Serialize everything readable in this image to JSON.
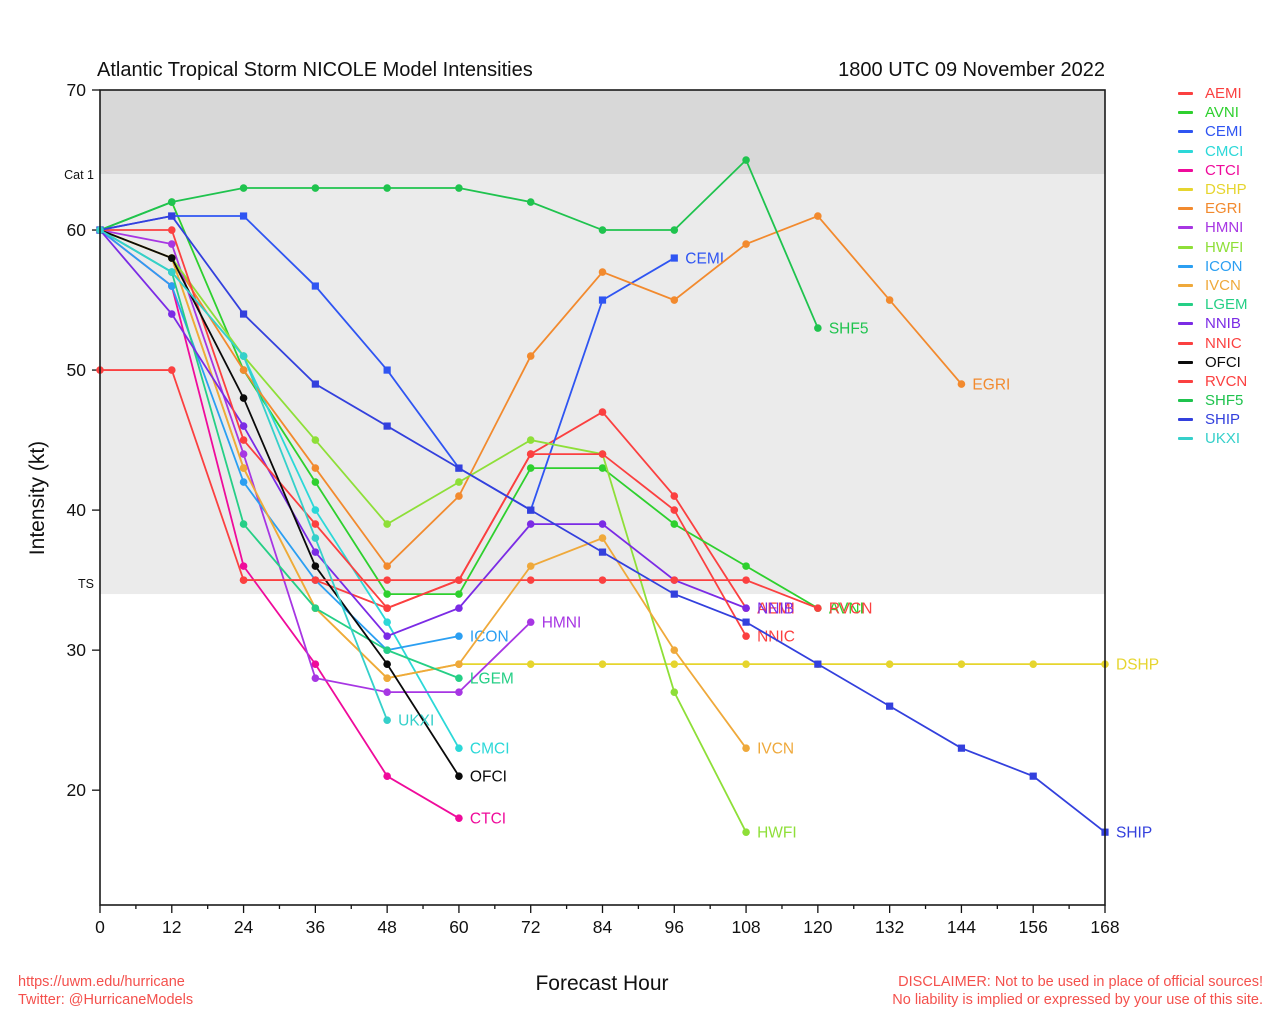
{
  "header": {
    "title": "Atlantic Tropical Storm NICOLE Model Intensities",
    "datetime": "1800 UTC 09 November 2022"
  },
  "axes": {
    "x_label": "Forecast Hour",
    "y_label": "Intensity (kt)"
  },
  "footer": {
    "url": "https://uwm.edu/hurricane",
    "twitter": "Twitter: @HurricaneModels",
    "disclaimer_line_1": "DISCLAIMER: Not to be used in place of official sources!",
    "disclaimer_line_2": "No liability is implied or expressed by your use of this site.",
    "accent_color": "#f4504c"
  },
  "chart_data": {
    "type": "line",
    "title": "Atlantic Tropical Storm NICOLE Model Intensities",
    "xlabel": "Forecast Hour",
    "ylabel": "Intensity (kt)",
    "xlim": [
      0,
      168
    ],
    "ylim": [
      11.8,
      70
    ],
    "x_ticks": [
      0,
      12,
      24,
      36,
      48,
      60,
      72,
      84,
      96,
      108,
      120,
      132,
      144,
      156,
      168
    ],
    "x_minor_step": 6,
    "y_ticks": [
      20,
      30,
      40,
      50,
      60,
      70
    ],
    "grid": false,
    "legend_position": "right-outside",
    "threshold_labels": [
      {
        "label": "Cat 1",
        "value": 64
      },
      {
        "label": "TS",
        "value": 34
      }
    ],
    "bands": [
      {
        "from": 64,
        "to": 70,
        "color": "#d8d8d8"
      },
      {
        "from": 34,
        "to": 64,
        "color": "#ebebeb"
      },
      {
        "from": 11.8,
        "to": 34,
        "color": "#ffffff"
      }
    ],
    "series": [
      {
        "name": "AEMI",
        "color": "#fb4040",
        "marker": "circle",
        "points": [
          [
            0,
            50
          ],
          [
            12,
            50
          ],
          [
            24,
            35
          ],
          [
            36,
            35
          ],
          [
            48,
            33
          ],
          [
            60,
            35
          ],
          [
            72,
            44
          ],
          [
            84,
            47
          ],
          [
            96,
            41
          ],
          [
            108,
            33
          ]
        ]
      },
      {
        "name": "AVNI",
        "color": "#2ed02e",
        "marker": "circle",
        "points": [
          [
            0,
            60
          ],
          [
            12,
            62
          ],
          [
            24,
            50
          ],
          [
            36,
            42
          ],
          [
            48,
            34
          ],
          [
            60,
            34
          ],
          [
            72,
            43
          ],
          [
            84,
            43
          ],
          [
            96,
            39
          ],
          [
            108,
            36
          ],
          [
            120,
            33
          ]
        ]
      },
      {
        "name": "CEMI",
        "color": "#2f55f2",
        "marker": "square",
        "points": [
          [
            0,
            60
          ],
          [
            12,
            61
          ],
          [
            24,
            61
          ],
          [
            36,
            56
          ],
          [
            48,
            50
          ],
          [
            60,
            43
          ],
          [
            72,
            40
          ],
          [
            84,
            55
          ],
          [
            96,
            58
          ]
        ]
      },
      {
        "name": "CMCI",
        "color": "#2cd8d8",
        "marker": "circle",
        "points": [
          [
            0,
            60
          ],
          [
            12,
            57
          ],
          [
            24,
            51
          ],
          [
            36,
            40
          ],
          [
            48,
            32
          ],
          [
            60,
            23
          ]
        ]
      },
      {
        "name": "CTCI",
        "color": "#ef0b9b",
        "marker": "circle",
        "points": [
          [
            0,
            60
          ],
          [
            12,
            56
          ],
          [
            24,
            36
          ],
          [
            36,
            29
          ],
          [
            48,
            21
          ],
          [
            60,
            18
          ]
        ]
      },
      {
        "name": "DSHP",
        "color": "#e6d52e",
        "marker": "circle",
        "points": [
          [
            0,
            60
          ],
          [
            12,
            58
          ],
          [
            24,
            43
          ],
          [
            36,
            33
          ],
          [
            48,
            28
          ],
          [
            60,
            29
          ],
          [
            72,
            29
          ],
          [
            84,
            29
          ],
          [
            96,
            29
          ],
          [
            108,
            29
          ],
          [
            120,
            29
          ],
          [
            132,
            29
          ],
          [
            144,
            29
          ],
          [
            156,
            29
          ],
          [
            168,
            29
          ]
        ]
      },
      {
        "name": "EGRI",
        "color": "#f28a2e",
        "marker": "circle",
        "points": [
          [
            0,
            60
          ],
          [
            12,
            58
          ],
          [
            24,
            50
          ],
          [
            36,
            43
          ],
          [
            48,
            36
          ],
          [
            60,
            41
          ],
          [
            72,
            51
          ],
          [
            84,
            57
          ],
          [
            96,
            55
          ],
          [
            108,
            59
          ],
          [
            120,
            61
          ],
          [
            132,
            55
          ],
          [
            144,
            49
          ]
        ]
      },
      {
        "name": "HMNI",
        "color": "#a736e3",
        "marker": "circle",
        "points": [
          [
            0,
            60
          ],
          [
            12,
            59
          ],
          [
            24,
            44
          ],
          [
            36,
            28
          ],
          [
            48,
            27
          ],
          [
            60,
            27
          ],
          [
            72,
            32
          ]
        ]
      },
      {
        "name": "HWFI",
        "color": "#8edf38",
        "marker": "circle",
        "points": [
          [
            0,
            60
          ],
          [
            12,
            58
          ],
          [
            24,
            51
          ],
          [
            36,
            45
          ],
          [
            48,
            39
          ],
          [
            60,
            42
          ],
          [
            72,
            45
          ],
          [
            84,
            44
          ],
          [
            96,
            27
          ],
          [
            108,
            17
          ]
        ]
      },
      {
        "name": "ICON",
        "color": "#2b9ff2",
        "marker": "circle",
        "points": [
          [
            0,
            60
          ],
          [
            12,
            56
          ],
          [
            24,
            42
          ],
          [
            36,
            35
          ],
          [
            48,
            30
          ],
          [
            60,
            31
          ]
        ]
      },
      {
        "name": "IVCN",
        "color": "#efa93b",
        "marker": "circle",
        "points": [
          [
            0,
            60
          ],
          [
            12,
            58
          ],
          [
            24,
            43
          ],
          [
            36,
            33
          ],
          [
            48,
            28
          ],
          [
            60,
            29
          ],
          [
            72,
            36
          ],
          [
            84,
            38
          ],
          [
            96,
            30
          ],
          [
            108,
            23
          ]
        ]
      },
      {
        "name": "LGEM",
        "color": "#25cf86",
        "marker": "circle",
        "points": [
          [
            0,
            60
          ],
          [
            12,
            57
          ],
          [
            24,
            39
          ],
          [
            36,
            33
          ],
          [
            48,
            30
          ],
          [
            60,
            28
          ]
        ]
      },
      {
        "name": "NNIB",
        "color": "#7b2be5",
        "marker": "circle",
        "points": [
          [
            0,
            60
          ],
          [
            12,
            54
          ],
          [
            24,
            46
          ],
          [
            36,
            37
          ],
          [
            48,
            31
          ],
          [
            60,
            33
          ],
          [
            72,
            39
          ],
          [
            84,
            39
          ],
          [
            96,
            35
          ],
          [
            108,
            33
          ]
        ]
      },
      {
        "name": "NNIC",
        "color": "#fb4040",
        "marker": "circle",
        "points": [
          [
            0,
            60
          ],
          [
            12,
            60
          ],
          [
            24,
            45
          ],
          [
            36,
            39
          ],
          [
            48,
            33
          ],
          [
            60,
            35
          ],
          [
            72,
            44
          ],
          [
            84,
            44
          ],
          [
            96,
            40
          ],
          [
            108,
            31
          ]
        ]
      },
      {
        "name": "OFCI",
        "color": "#0a0a0a",
        "marker": "circle",
        "points": [
          [
            0,
            60
          ],
          [
            12,
            58
          ],
          [
            24,
            48
          ],
          [
            36,
            36
          ],
          [
            48,
            29
          ],
          [
            60,
            21
          ]
        ]
      },
      {
        "name": "RVCN",
        "color": "#fb4040",
        "marker": "circle",
        "points": [
          [
            24,
            35
          ],
          [
            36,
            35
          ],
          [
            48,
            35
          ],
          [
            60,
            35
          ],
          [
            72,
            35
          ],
          [
            84,
            35
          ],
          [
            96,
            35
          ],
          [
            108,
            35
          ],
          [
            120,
            33
          ]
        ]
      },
      {
        "name": "SHF5",
        "color": "#1fc34e",
        "marker": "circle",
        "points": [
          [
            0,
            60
          ],
          [
            12,
            62
          ],
          [
            24,
            63
          ],
          [
            36,
            63
          ],
          [
            48,
            63
          ],
          [
            60,
            63
          ],
          [
            72,
            62
          ],
          [
            84,
            60
          ],
          [
            96,
            60
          ],
          [
            108,
            65
          ],
          [
            120,
            53
          ]
        ]
      },
      {
        "name": "SHIP",
        "color": "#3340dd",
        "marker": "square",
        "points": [
          [
            0,
            60
          ],
          [
            12,
            61
          ],
          [
            24,
            54
          ],
          [
            36,
            49
          ],
          [
            48,
            46
          ],
          [
            60,
            43
          ],
          [
            72,
            40
          ],
          [
            84,
            37
          ],
          [
            96,
            34
          ],
          [
            108,
            32
          ],
          [
            120,
            29
          ],
          [
            132,
            26
          ],
          [
            144,
            23
          ],
          [
            156,
            21
          ],
          [
            168,
            17
          ]
        ]
      },
      {
        "name": "UKXI",
        "color": "#35d0ca",
        "marker": "circle",
        "points": [
          [
            0,
            60
          ],
          [
            12,
            57
          ],
          [
            24,
            51
          ],
          [
            36,
            38
          ],
          [
            48,
            25
          ]
        ]
      }
    ]
  }
}
